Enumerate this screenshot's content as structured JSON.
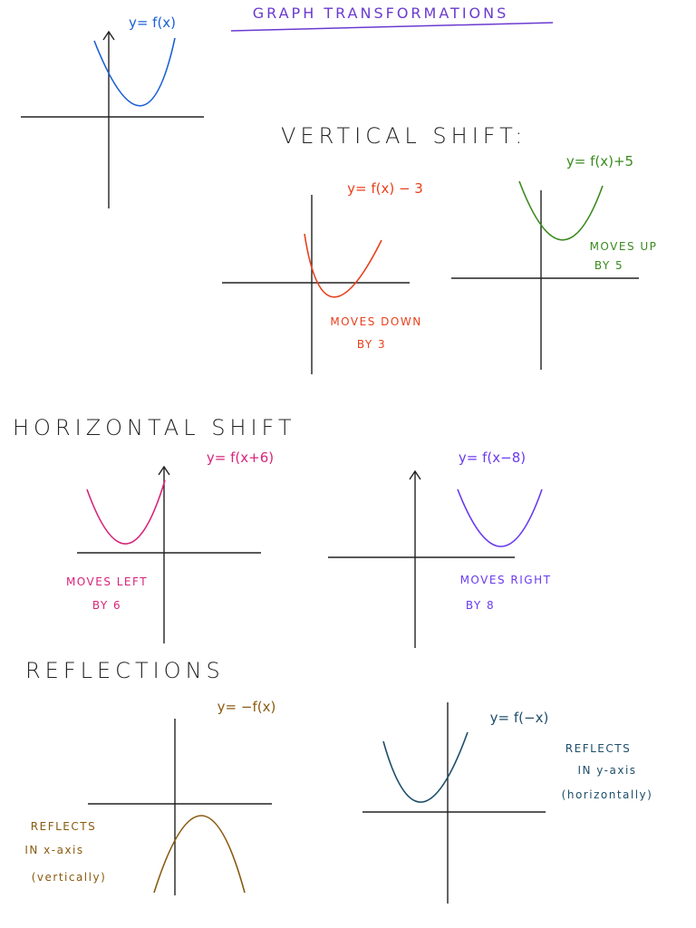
{
  "header": {
    "title": "GRAPH TRANSFORMATIONS"
  },
  "sections": [
    {
      "heading": "VERTICAL SHIFT:"
    },
    {
      "heading": "HORIZONTAL SHIFT"
    },
    {
      "heading": "REFLECTIONS"
    }
  ],
  "graphs": [
    {
      "label": "y= f(x)",
      "color": "#1a5fd6",
      "note": []
    },
    {
      "label": "y= f(x) − 3",
      "color": "#e8401c",
      "note": [
        "MOVES DOWN",
        "BY 3"
      ]
    },
    {
      "label": "y= f(x)+5",
      "color": "#3a8a1e",
      "note": [
        "MOVES UP",
        "BY 5"
      ]
    },
    {
      "label": "y= f(x+6)",
      "color": "#d8247a",
      "note": [
        "MOVES LEFT",
        "BY 6"
      ]
    },
    {
      "label": "y= f(x−8)",
      "color": "#6a3af0",
      "note": [
        "MOVES RIGHT",
        "BY 8"
      ]
    },
    {
      "label": "y= −f(x)",
      "color": "#8a5a10",
      "note": [
        "REFLECTS",
        "IN x-axis",
        "(vertically)"
      ]
    },
    {
      "label": "y= f(−x)",
      "color": "#1e4e6a",
      "note": [
        "REFLECTS",
        "IN y-axis",
        "(horizontally)"
      ]
    }
  ]
}
